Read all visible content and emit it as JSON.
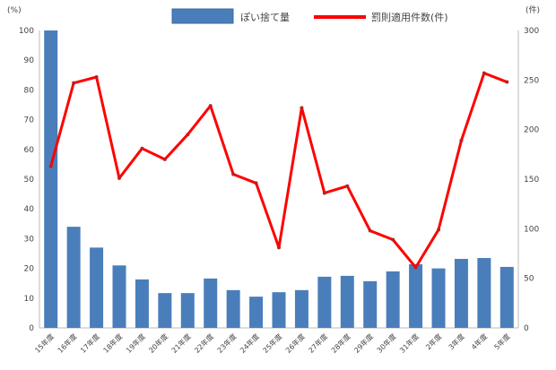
{
  "chart_data": {
    "type": "bar+line",
    "categories": [
      "15年度",
      "16年度",
      "17年度",
      "18年度",
      "19年度",
      "20年度",
      "21年度",
      "22年度",
      "23年度",
      "24年度",
      "25年度",
      "26年度",
      "27年度",
      "28年度",
      "29年度",
      "30年度",
      "31年度",
      "2年度",
      "3年度",
      "4年度",
      "5年度"
    ],
    "left_axis": {
      "label": "(%)",
      "ylim": [
        0,
        100
      ],
      "ticks": [
        0,
        10,
        20,
        30,
        40,
        50,
        60,
        70,
        80,
        90,
        100
      ]
    },
    "right_axis": {
      "label": "(件)",
      "ylim": [
        0,
        300
      ],
      "ticks": [
        0,
        50,
        100,
        150,
        200,
        250,
        300
      ]
    },
    "grid": false,
    "legend": "top",
    "series": [
      {
        "name": "ぽい捨て量",
        "type": "bar",
        "axis": "left",
        "color": "#4a7ebb",
        "values": [
          100,
          34,
          27,
          21,
          16.3,
          11.7,
          11.7,
          16.6,
          12.7,
          10.5,
          12,
          12.7,
          17.2,
          17.5,
          15.7,
          19,
          21.4,
          20,
          23.2,
          23.5,
          20.5
        ]
      },
      {
        "name": "罰則適用件数(件)",
        "type": "line",
        "axis": "right",
        "color": "#ff0000",
        "values": [
          163,
          247,
          253,
          151,
          181,
          170,
          195,
          224,
          155,
          146,
          81,
          222,
          136,
          143,
          98,
          89,
          61,
          99,
          189,
          257,
          248
        ]
      }
    ]
  }
}
